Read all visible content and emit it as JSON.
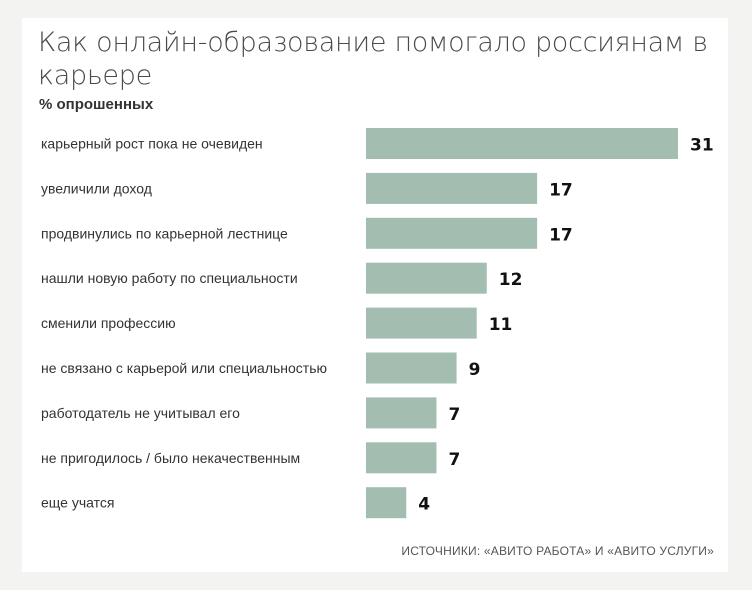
{
  "chart_data": {
    "type": "bar",
    "orientation": "horizontal",
    "title": "Как онлайн-образование помогало россиянам в карьере",
    "subtitle": "% опрошенных",
    "categories": [
      "карьерный рост пока не очевиден",
      "увеличили доход",
      "продвинулись по карьерной лестнице",
      "нашли новую работу по специальности",
      "сменили профессию",
      "не связано с карьерой или специальностью",
      "работодатель не учитывал его",
      "не пригодилось / было некачественным",
      "еще учатся"
    ],
    "values": [
      31,
      17,
      17,
      12,
      11,
      9,
      7,
      7,
      4
    ],
    "bar_color": "#a3bdb0",
    "xlim": [
      0,
      31
    ],
    "grid": false
  },
  "source": "ИСТОЧНИКИ: «АВИТО РАБОТА» И «АВИТО УСЛУГИ»"
}
